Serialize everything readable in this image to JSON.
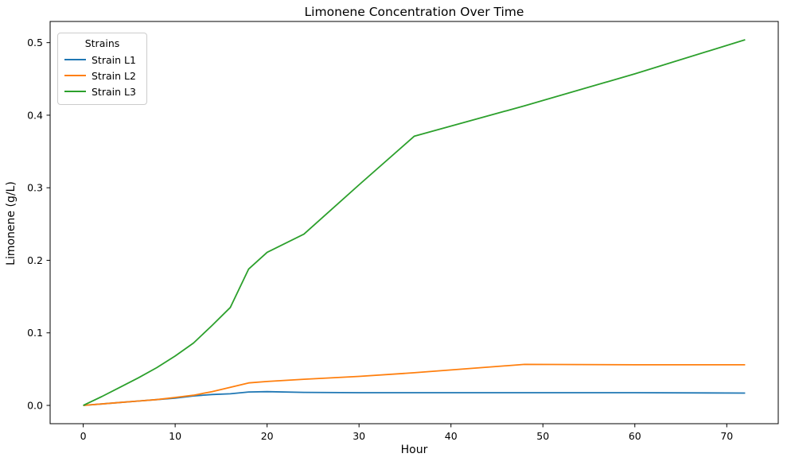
{
  "figure": {
    "title": "Limonene Concentration Over Time",
    "xlabel": "Hour",
    "ylabel": "Limonene (g/L)"
  },
  "legend": {
    "title": "Strains"
  },
  "colors": {
    "strain_l1": "#1f77b4",
    "strain_l2": "#ff7f0e",
    "strain_l3": "#2ca02c",
    "spine": "#000000",
    "legend_border": "#cccccc"
  },
  "chart_data": {
    "type": "line",
    "title": "Limonene Concentration Over Time",
    "xlabel": "Hour",
    "ylabel": "Limonene (g/L)",
    "grid": false,
    "legend_position": "upper left",
    "legend_title": "Strains",
    "x": [
      0,
      2,
      4,
      6,
      8,
      10,
      12,
      14,
      16,
      18,
      20,
      24,
      30,
      36,
      48,
      60,
      72
    ],
    "series": [
      {
        "name": "Strain L1",
        "color": "#1f77b4",
        "values": [
          0.0,
          0.002,
          0.004,
          0.006,
          0.008,
          0.01,
          0.013,
          0.015,
          0.016,
          0.0185,
          0.019,
          0.018,
          0.0175,
          0.0175,
          0.0175,
          0.0175,
          0.017
        ]
      },
      {
        "name": "Strain L2",
        "color": "#ff7f0e",
        "values": [
          0.0,
          0.002,
          0.004,
          0.006,
          0.008,
          0.011,
          0.014,
          0.019,
          0.025,
          0.031,
          0.033,
          0.036,
          0.04,
          0.045,
          0.0565,
          0.056,
          0.056
        ]
      },
      {
        "name": "Strain L3",
        "color": "#2ca02c",
        "values": [
          0.0,
          0.012,
          0.025,
          0.038,
          0.052,
          0.068,
          0.086,
          0.11,
          0.135,
          0.188,
          0.211,
          0.236,
          0.304,
          0.371,
          0.413,
          0.457,
          0.504
        ]
      }
    ],
    "xticks": [
      0,
      10,
      20,
      30,
      40,
      50,
      60,
      70
    ],
    "yticks": [
      0.0,
      0.1,
      0.2,
      0.3,
      0.4,
      0.5
    ],
    "xlim": [
      -3.6,
      75.6
    ],
    "ylim": [
      -0.0252,
      0.5292
    ]
  }
}
